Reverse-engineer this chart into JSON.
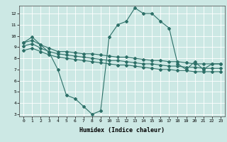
{
  "xlabel": "Humidex (Indice chaleur)",
  "bg_color": "#cce8e4",
  "line_color": "#2d7068",
  "grid_color": "#b0d8d0",
  "x_values": [
    0,
    1,
    2,
    3,
    4,
    5,
    6,
    7,
    8,
    9,
    10,
    11,
    12,
    13,
    14,
    15,
    16,
    17,
    18,
    19,
    20,
    21,
    22,
    23
  ],
  "y_jagged": [
    9.4,
    9.9,
    9.2,
    8.5,
    7.0,
    4.7,
    4.4,
    3.7,
    3.0,
    3.3,
    9.9,
    11.0,
    11.3,
    12.5,
    12.0,
    12.0,
    11.3,
    10.7,
    7.5,
    7.0,
    7.7,
    7.0,
    7.5,
    7.5
  ],
  "y_top": [
    9.4,
    9.6,
    9.2,
    8.9,
    8.6,
    8.6,
    8.5,
    8.4,
    8.4,
    8.3,
    8.2,
    8.1,
    8.1,
    8.0,
    7.9,
    7.8,
    7.8,
    7.7,
    7.7,
    7.6,
    7.5,
    7.5,
    7.5,
    7.5
  ],
  "y_mid": [
    9.1,
    9.3,
    8.9,
    8.6,
    8.4,
    8.3,
    8.2,
    8.1,
    8.0,
    7.9,
    7.8,
    7.8,
    7.7,
    7.6,
    7.5,
    7.5,
    7.4,
    7.3,
    7.3,
    7.2,
    7.2,
    7.1,
    7.1,
    7.1
  ],
  "y_bot": [
    8.7,
    8.9,
    8.6,
    8.3,
    8.1,
    8.0,
    7.9,
    7.8,
    7.7,
    7.6,
    7.5,
    7.4,
    7.4,
    7.3,
    7.2,
    7.1,
    7.0,
    7.0,
    6.9,
    6.9,
    6.8,
    6.8,
    6.8,
    6.8
  ],
  "xlim": [
    -0.5,
    23.5
  ],
  "ylim": [
    2.8,
    12.7
  ],
  "yticks": [
    3,
    4,
    5,
    6,
    7,
    8,
    9,
    10,
    11,
    12
  ],
  "xticks": [
    0,
    1,
    2,
    3,
    4,
    5,
    6,
    7,
    8,
    9,
    10,
    11,
    12,
    13,
    14,
    15,
    16,
    17,
    18,
    19,
    20,
    21,
    22,
    23
  ]
}
